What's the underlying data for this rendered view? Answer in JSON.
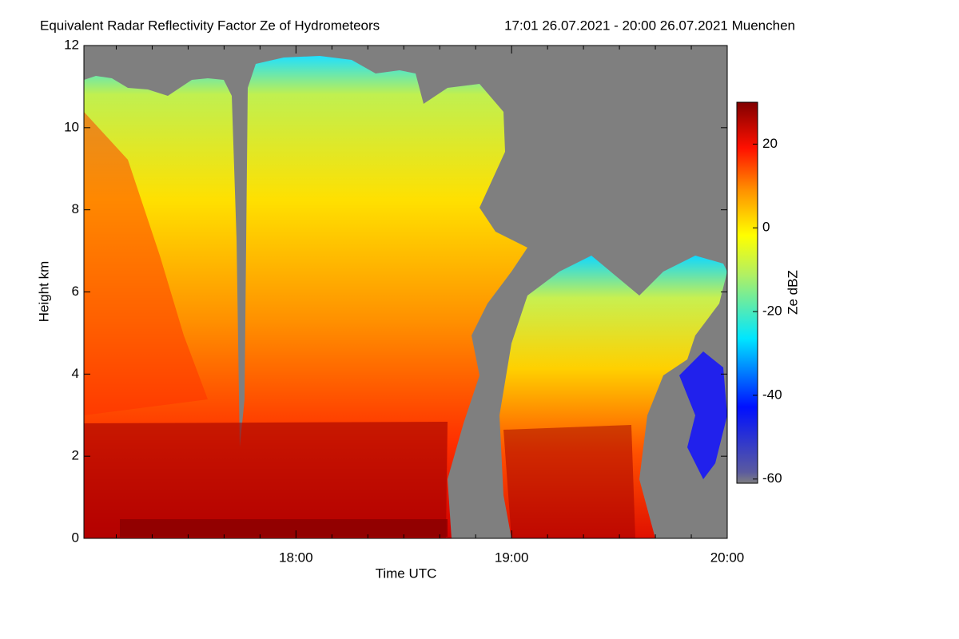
{
  "chart_data": {
    "type": "heatmap",
    "title": "Equivalent Radar Reflectivity Factor Ze of Hydrometeors",
    "subtitle": "17:01 26.07.2021 - 20:00 26.07.2021 Muenchen",
    "xlabel": "Time UTC",
    "ylabel": "Height km",
    "xlim": [
      1021,
      1200
    ],
    "xticks": [
      {
        "value": 1080,
        "label": "18:00"
      },
      {
        "value": 1140,
        "label": "19:00"
      },
      {
        "value": 1200,
        "label": "20:00"
      }
    ],
    "xminorticks": [
      1030,
      1040,
      1050,
      1060,
      1070,
      1090,
      1100,
      1110,
      1120,
      1130,
      1150,
      1160,
      1170,
      1180,
      1190
    ],
    "ylim": [
      0,
      12
    ],
    "yticks": [
      0,
      2,
      4,
      6,
      8,
      10,
      12
    ],
    "colorbar": {
      "label": "Ze dBZ",
      "lim": [
        -61,
        30
      ],
      "ticks": [
        -60,
        -40,
        -20,
        0,
        20
      ]
    }
  }
}
